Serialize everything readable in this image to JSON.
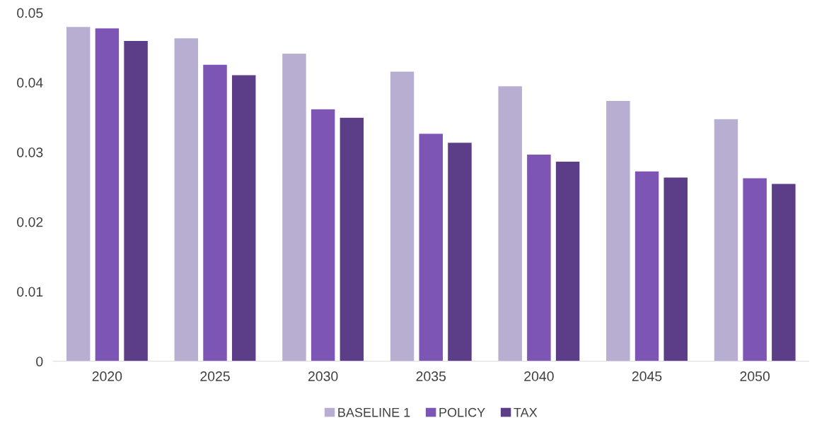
{
  "chart_data": {
    "type": "bar",
    "categories": [
      "2020",
      "2025",
      "2030",
      "2035",
      "2040",
      "2045",
      "2050"
    ],
    "series": [
      {
        "name": "BASELINE 1",
        "color": "#b8aed1",
        "values": [
          0.048,
          0.0464,
          0.0442,
          0.0416,
          0.0395,
          0.0374,
          0.0348
        ]
      },
      {
        "name": "POLICY",
        "color": "#7d55b5",
        "values": [
          0.0478,
          0.0426,
          0.0362,
          0.0327,
          0.0297,
          0.0273,
          0.0263
        ]
      },
      {
        "name": "TAX",
        "color": "#5c3d88",
        "values": [
          0.046,
          0.0411,
          0.035,
          0.0314,
          0.0287,
          0.0264,
          0.0255
        ]
      }
    ],
    "ylim": [
      0,
      0.05
    ],
    "yticks": [
      0,
      0.01,
      0.02,
      0.03,
      0.04,
      0.05
    ],
    "grid": false,
    "legend": "bottom"
  }
}
